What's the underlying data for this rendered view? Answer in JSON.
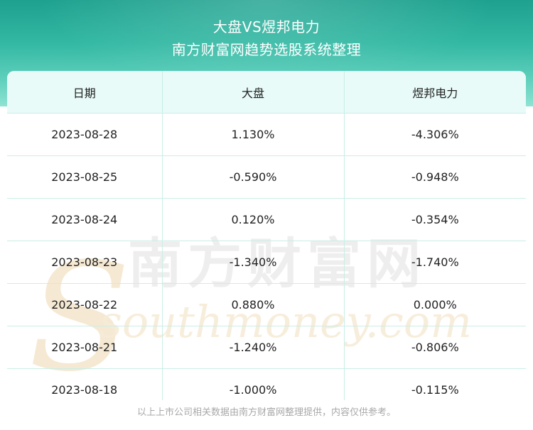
{
  "title": "大盘VS煜邦电力",
  "subtitle": "南方财富网趋势选股系统整理",
  "chart_data": {
    "type": "table",
    "columns": [
      "日期",
      "大盘",
      "煜邦电力"
    ],
    "rows": [
      [
        "2023-08-28",
        "1.130%",
        "-4.306%"
      ],
      [
        "2023-08-25",
        "-0.590%",
        "-0.948%"
      ],
      [
        "2023-08-24",
        "0.120%",
        "-0.354%"
      ],
      [
        "2023-08-23",
        "-1.340%",
        "-1.740%"
      ],
      [
        "2023-08-22",
        "0.880%",
        "0.000%"
      ],
      [
        "2023-08-21",
        "-1.240%",
        "-0.806%"
      ],
      [
        "2023-08-18",
        "-1.000%",
        "-0.115%"
      ]
    ]
  },
  "watermark": {
    "cn": "南方财富网",
    "en": "southmoney.com"
  },
  "footer": "以上上市公司相关数据由南方财富网整理提供，内容仅供参考。",
  "colors": {
    "header_top": "#1ea18f",
    "header_bottom": "#8fe2d2",
    "table_head_bg": "#e8fbf8",
    "grid_line": "#c9eee6"
  }
}
